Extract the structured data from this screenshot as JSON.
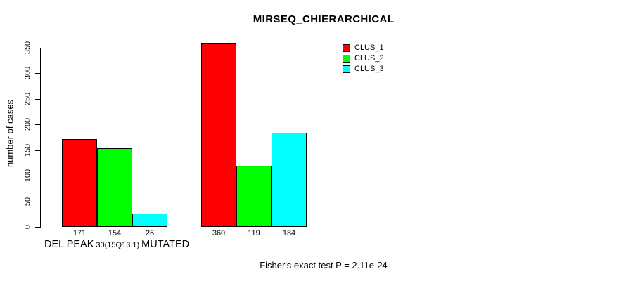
{
  "figure": {
    "title": "MIRSEQ_CHIERARCHICAL",
    "ylabel": "number of cases",
    "xlabel": {
      "part1": "DEL PEAK",
      "part2": "30(15Q13.1)",
      "part3": "MUTATED"
    },
    "footer": "Fisher's exact test P = 2.11e-24"
  },
  "chart_data": {
    "type": "bar",
    "title": "MIRSEQ_CHIERARCHICAL",
    "xlabel": "DEL PEAK 30(15Q13.1) MUTATED",
    "ylabel": "number of cases",
    "annotation": "Fisher's exact test P = 2.11e-24",
    "categories": [
      "",
      ""
    ],
    "series": [
      {
        "name": "CLUS_1",
        "color": "#ff0000",
        "values": [
          171,
          360
        ]
      },
      {
        "name": "CLUS_2",
        "color": "#00ff00",
        "values": [
          154,
          119
        ]
      },
      {
        "name": "CLUS_3",
        "color": "#00ffff",
        "values": [
          26,
          184
        ]
      }
    ],
    "yticks": [
      0,
      50,
      100,
      150,
      200,
      250,
      300,
      350
    ],
    "ylim": [
      0,
      360
    ],
    "bar_value_labels": true,
    "grid": false,
    "legend_position": "top-right",
    "legend_labels": [
      "CLUS_1",
      "CLUS_2",
      "CLUS_3"
    ],
    "axis_color": "#000000",
    "background": "#ffffff"
  }
}
